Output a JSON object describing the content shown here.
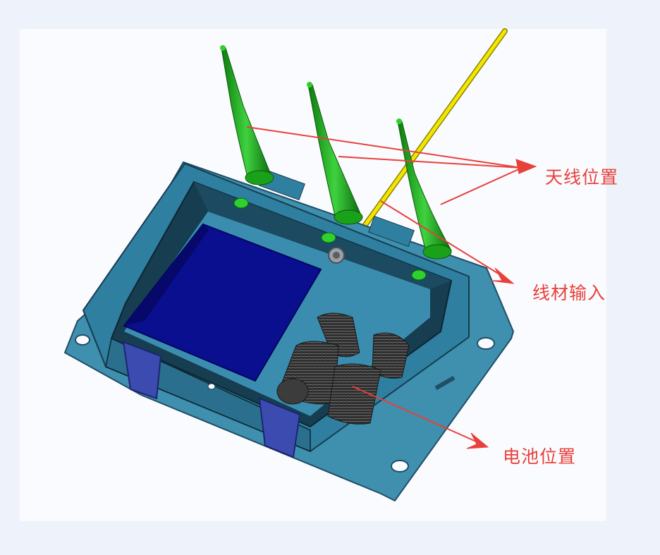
{
  "annotations": {
    "antenna_position": "天线位置",
    "cable_input": "线材输入",
    "battery_position": "电池位置"
  },
  "colors": {
    "enclosure": "#3f8faf",
    "enclosure_dark": "#1f4f66",
    "enclosure_inner": "#2b7394",
    "pcb": "#0a0f8f",
    "antenna": "#1aa11a",
    "cable": "#f2e600",
    "battery": "#3c3c3c",
    "latch": "#3c4bb0",
    "arrow": "#e8403b"
  }
}
